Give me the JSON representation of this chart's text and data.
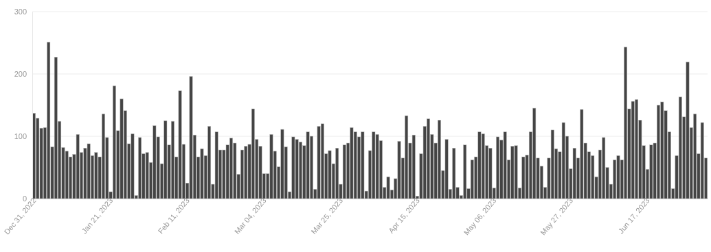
{
  "chart_data": {
    "type": "bar",
    "categories": [
      "Dec 31, 2022",
      null,
      null,
      null,
      null,
      null,
      null,
      null,
      null,
      null,
      null,
      null,
      null,
      null,
      null,
      null,
      null,
      null,
      null,
      null,
      null,
      "Jan 21, 2023",
      null,
      null,
      null,
      null,
      null,
      null,
      null,
      null,
      null,
      null,
      null,
      null,
      null,
      null,
      null,
      null,
      null,
      null,
      null,
      null,
      "Feb 11, 2023",
      null,
      null,
      null,
      null,
      null,
      null,
      null,
      null,
      null,
      null,
      null,
      null,
      null,
      null,
      null,
      null,
      null,
      null,
      null,
      null,
      "Mar 04, 2023",
      null,
      null,
      null,
      null,
      null,
      null,
      null,
      null,
      null,
      null,
      null,
      null,
      null,
      null,
      null,
      null,
      null,
      null,
      null,
      null,
      "Mar 25, 2023",
      null,
      null,
      null,
      null,
      null,
      null,
      null,
      null,
      null,
      null,
      null,
      null,
      null,
      null,
      null,
      null,
      null,
      null,
      null,
      null,
      "Apr 15, 2023",
      null,
      null,
      null,
      null,
      null,
      null,
      null,
      null,
      null,
      null,
      null,
      null,
      null,
      null,
      null,
      null,
      null,
      null,
      null,
      null,
      "May 06, 2023",
      null,
      null,
      null,
      null,
      null,
      null,
      null,
      null,
      null,
      null,
      null,
      null,
      null,
      null,
      null,
      null,
      null,
      null,
      null,
      null,
      "May 27, 2023",
      null,
      null,
      null,
      null,
      null,
      null,
      null,
      null,
      null,
      null,
      null,
      null,
      null,
      null,
      null,
      null,
      null,
      null,
      null,
      null,
      "Jun 17, 2023",
      null,
      null,
      null,
      null,
      null,
      null,
      null,
      null,
      null,
      null,
      null,
      null,
      null,
      null,
      null,
      null
    ],
    "values": [
      137,
      129,
      113,
      114,
      251,
      83,
      227,
      124,
      82,
      76,
      67,
      71,
      103,
      74,
      81,
      88,
      69,
      74,
      67,
      136,
      98,
      11,
      181,
      109,
      160,
      141,
      88,
      104,
      5,
      98,
      72,
      74,
      58,
      117,
      99,
      56,
      125,
      86,
      124,
      67,
      173,
      87,
      25,
      196,
      102,
      67,
      80,
      69,
      116,
      23,
      107,
      78,
      78,
      86,
      97,
      89,
      39,
      78,
      84,
      87,
      144,
      95,
      84,
      40,
      40,
      103,
      76,
      51,
      111,
      83,
      11,
      99,
      95,
      91,
      85,
      107,
      100,
      15,
      116,
      120,
      72,
      77,
      56,
      81,
      23,
      86,
      89,
      114,
      107,
      99,
      107,
      12,
      77,
      107,
      103,
      93,
      18,
      35,
      14,
      32,
      92,
      65,
      133,
      89,
      102,
      4,
      72,
      116,
      128,
      103,
      89,
      126,
      45,
      95,
      15,
      81,
      18,
      5,
      86,
      16,
      62,
      67,
      107,
      104,
      85,
      81,
      17,
      99,
      94,
      107,
      62,
      84,
      85,
      17,
      67,
      70,
      107,
      145,
      65,
      52,
      18,
      65,
      110,
      80,
      75,
      122,
      100,
      48,
      81,
      65,
      143,
      89,
      75,
      69,
      35,
      78,
      98,
      50,
      23,
      62,
      69,
      62,
      243,
      144,
      156,
      159,
      126,
      85,
      47,
      86,
      89,
      150,
      155,
      141,
      107,
      16,
      69,
      163,
      131,
      219,
      114,
      136,
      72,
      122,
      65
    ],
    "color": "#444444",
    "ylim": [
      0,
      300
    ],
    "yticks": [
      0,
      100,
      200,
      300
    ],
    "grid": "y"
  }
}
